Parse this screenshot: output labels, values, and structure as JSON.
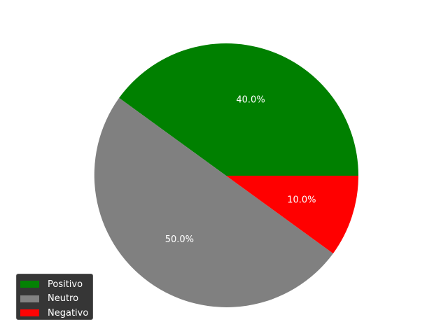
{
  "chart_data": {
    "type": "pie",
    "title": "",
    "start_angle_deg": 0,
    "direction": "counterclockwise",
    "slices": [
      {
        "label": "Positivo",
        "value": 40.0,
        "pct_label": "40.0%",
        "color": "#008000"
      },
      {
        "label": "Neutro",
        "value": 50.0,
        "pct_label": "50.0%",
        "color": "#808080"
      },
      {
        "label": "Negativo",
        "value": 10.0,
        "pct_label": "10.0%",
        "color": "#ff0000"
      }
    ],
    "legend": {
      "placement": "lower-left",
      "background": "#333333",
      "text_color": "#ffffff"
    }
  }
}
